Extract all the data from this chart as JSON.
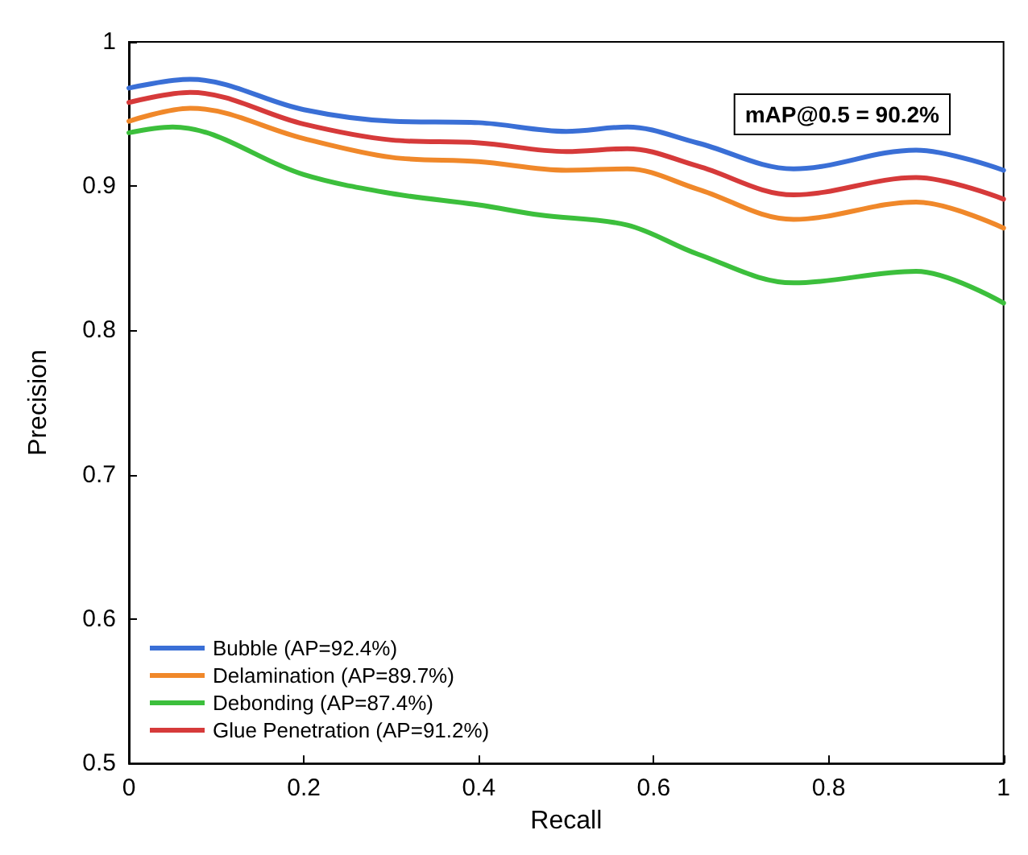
{
  "chart_data": {
    "type": "line",
    "xlabel": "Recall",
    "ylabel": "Precision",
    "xlim": [
      0,
      1
    ],
    "ylim": [
      0.5,
      1
    ],
    "xticks": [
      0,
      0.2,
      0.4,
      0.6,
      0.8,
      1
    ],
    "yticks": [
      0.5,
      0.6,
      0.7,
      0.8,
      0.9,
      1
    ],
    "grid": false,
    "legend": "bottom left",
    "marker": "none",
    "line_style": "solid",
    "annotations": [
      "mAP@0.5 = 90.2%"
    ],
    "series": [
      {
        "name": "Bubble (AP=92.4%)",
        "color": "#3a6fd6",
        "x": [
          0,
          0.07,
          0.2,
          0.3,
          0.4,
          0.5,
          0.57,
          0.65,
          0.76,
          0.9,
          1
        ],
        "values": [
          0.968,
          0.974,
          0.953,
          0.945,
          0.944,
          0.938,
          0.941,
          0.93,
          0.912,
          0.925,
          0.911
        ]
      },
      {
        "name": "Delamination (AP=89.7%)",
        "color": "#f0882a",
        "x": [
          0,
          0.07,
          0.2,
          0.3,
          0.4,
          0.5,
          0.57,
          0.65,
          0.76,
          0.9,
          1
        ],
        "values": [
          0.945,
          0.954,
          0.933,
          0.92,
          0.917,
          0.911,
          0.912,
          0.898,
          0.877,
          0.889,
          0.871
        ]
      },
      {
        "name": "Debonding (AP=87.4%)",
        "color": "#3cbf3c",
        "x": [
          0,
          0.05,
          0.2,
          0.3,
          0.4,
          0.47,
          0.57,
          0.65,
          0.76,
          0.9,
          1
        ],
        "values": [
          0.937,
          0.941,
          0.908,
          0.895,
          0.887,
          0.88,
          0.873,
          0.853,
          0.833,
          0.841,
          0.819
        ]
      },
      {
        "name": "Glue Penetration (AP=91.2%)",
        "color": "#d63a3a",
        "x": [
          0,
          0.07,
          0.2,
          0.3,
          0.4,
          0.5,
          0.57,
          0.65,
          0.76,
          0.9,
          1
        ],
        "values": [
          0.958,
          0.965,
          0.943,
          0.932,
          0.93,
          0.924,
          0.926,
          0.914,
          0.894,
          0.906,
          0.891
        ]
      }
    ]
  }
}
